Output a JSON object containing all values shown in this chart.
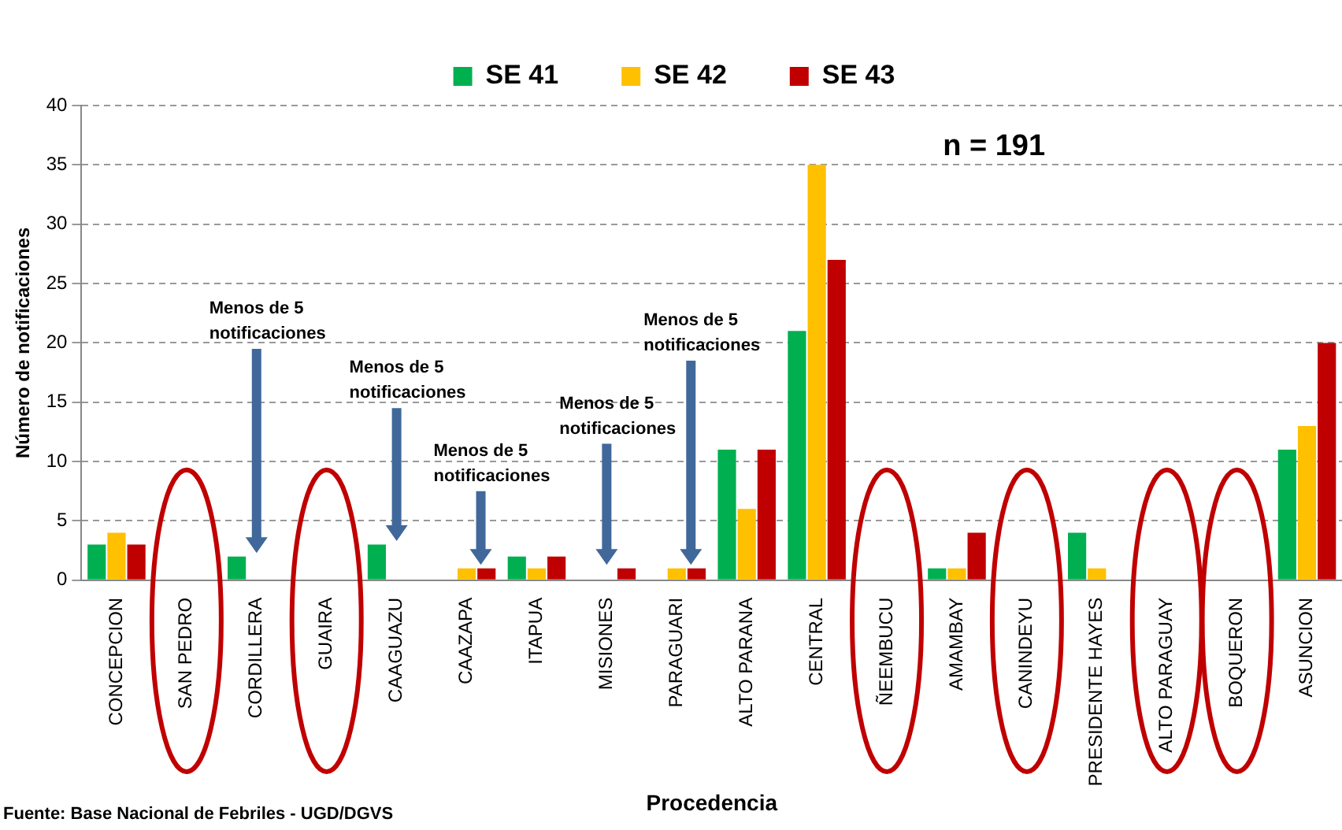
{
  "chart_data": {
    "type": "bar",
    "xlabel": "Procedencia",
    "ylabel": "Número de notificaciones",
    "categories": [
      "CONCEPCION",
      "SAN PEDRO",
      "CORDILLERA",
      "GUAIRA",
      "CAAGUAZU",
      "CAAZAPA",
      "ITAPUA",
      "MISIONES",
      "PARAGUARI",
      "ALTO PARANA",
      "CENTRAL",
      "ÑEEMBUCU",
      "AMAMBAY",
      "CANINDEYU",
      "PRESIDENTE HAYES",
      "ALTO PARAGUAY",
      "BOQUERON",
      "ASUNCION"
    ],
    "series": [
      {
        "name": "SE 41",
        "color": "#00b050",
        "values": [
          3,
          0,
          2,
          0,
          3,
          0,
          2,
          0,
          0,
          11,
          21,
          0,
          1,
          0,
          4,
          0,
          0,
          11
        ]
      },
      {
        "name": "SE 42",
        "color": "#ffc000",
        "values": [
          4,
          0,
          0,
          0,
          0,
          1,
          1,
          0,
          1,
          6,
          35,
          0,
          1,
          0,
          1,
          0,
          0,
          13
        ]
      },
      {
        "name": "SE 43",
        "color": "#c00000",
        "values": [
          3,
          0,
          0,
          0,
          0,
          1,
          2,
          1,
          1,
          11,
          27,
          0,
          4,
          0,
          0,
          0,
          0,
          20
        ]
      }
    ],
    "ylim": [
      0,
      40
    ],
    "yticks": [
      0,
      5,
      10,
      15,
      20,
      25,
      30,
      35,
      40
    ],
    "grid": "y",
    "legend": "top",
    "annotations": [
      "n = 191",
      "Menos de 5 notificaciones",
      "Menos de 5 notificaciones",
      "Menos de 5 notificaciones",
      "Menos de 5 notificaciones",
      "Menos de 5 notificaciones",
      "Fuente: Base Nacional de Febriles - UGD/DGVS"
    ]
  }
}
